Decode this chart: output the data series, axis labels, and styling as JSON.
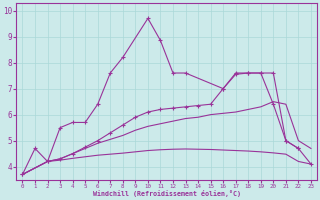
{
  "xlabel": "Windchill (Refroidissement éolien,°C)",
  "xlim": [
    -0.5,
    23.5
  ],
  "ylim": [
    3.5,
    10.3
  ],
  "xticks": [
    0,
    1,
    2,
    3,
    4,
    5,
    6,
    7,
    8,
    9,
    10,
    11,
    12,
    13,
    14,
    15,
    16,
    17,
    18,
    19,
    20,
    21,
    22,
    23
  ],
  "yticks": [
    4,
    5,
    6,
    7,
    8,
    9,
    10
  ],
  "bg_color": "#cceaea",
  "line_color": "#993399",
  "grid_color": "#aad8d8",
  "series_upper_marked": {
    "x": [
      0,
      1,
      2,
      3,
      4,
      5,
      6,
      7,
      8,
      10,
      11,
      12,
      13,
      16,
      17,
      18,
      19,
      20,
      21,
      22
    ],
    "y": [
      3.7,
      4.7,
      4.2,
      5.5,
      5.7,
      5.7,
      6.4,
      7.6,
      8.2,
      9.7,
      8.85,
      7.6,
      7.6,
      7.0,
      7.6,
      7.6,
      7.6,
      7.6,
      5.0,
      4.7
    ]
  },
  "series_lower_marked": {
    "x": [
      0,
      2,
      3,
      4,
      5,
      6,
      7,
      8,
      9,
      10,
      11,
      12,
      13,
      14,
      15,
      16,
      17,
      18,
      19,
      20,
      21,
      22,
      23
    ],
    "y": [
      3.7,
      4.2,
      4.3,
      4.5,
      4.75,
      5.0,
      5.3,
      5.6,
      5.9,
      6.1,
      6.2,
      6.25,
      6.3,
      6.35,
      6.4,
      7.0,
      7.55,
      7.6,
      7.6,
      6.4,
      5.0,
      4.7,
      4.1
    ]
  },
  "series_smooth_upper": {
    "x": [
      0,
      2,
      3,
      4,
      5,
      6,
      7,
      8,
      9,
      10,
      11,
      12,
      13,
      14,
      15,
      16,
      17,
      18,
      19,
      20,
      21,
      22,
      23
    ],
    "y": [
      3.7,
      4.2,
      4.3,
      4.5,
      4.7,
      4.9,
      5.05,
      5.2,
      5.4,
      5.55,
      5.65,
      5.75,
      5.85,
      5.9,
      6.0,
      6.05,
      6.1,
      6.2,
      6.3,
      6.5,
      6.4,
      5.0,
      4.7
    ]
  },
  "series_smooth_lower": {
    "x": [
      0,
      2,
      3,
      4,
      5,
      6,
      7,
      8,
      9,
      10,
      11,
      12,
      13,
      14,
      15,
      16,
      17,
      18,
      19,
      20,
      21,
      22,
      23
    ],
    "y": [
      3.7,
      4.2,
      4.25,
      4.32,
      4.38,
      4.44,
      4.48,
      4.52,
      4.57,
      4.62,
      4.65,
      4.67,
      4.68,
      4.67,
      4.66,
      4.64,
      4.62,
      4.6,
      4.57,
      4.53,
      4.48,
      4.2,
      4.1
    ]
  }
}
